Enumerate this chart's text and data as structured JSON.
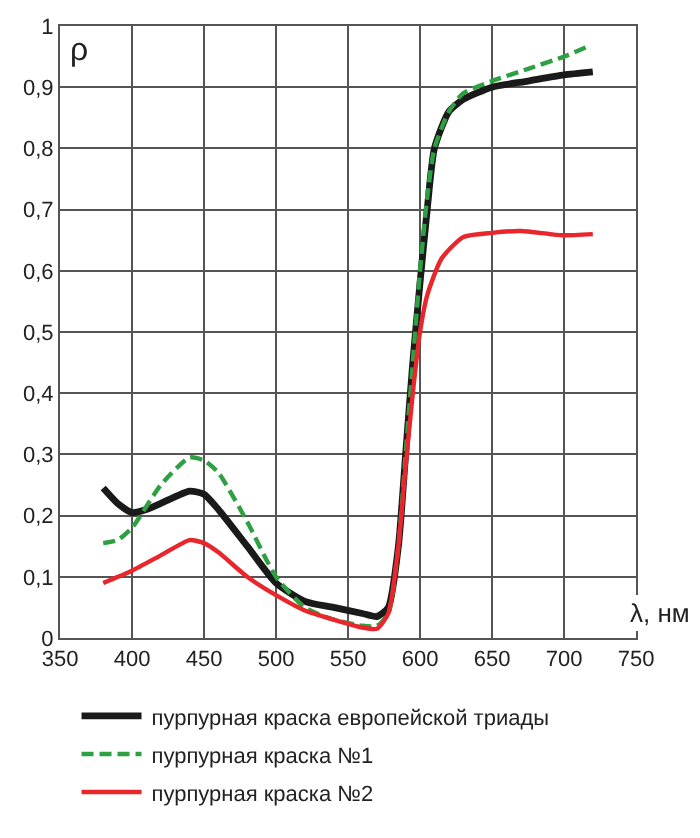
{
  "chart_data": {
    "type": "line",
    "ylabel": "ρ",
    "xlabel": "λ, нм",
    "xlim": [
      350,
      750
    ],
    "xticks": [
      350,
      400,
      450,
      500,
      550,
      600,
      650,
      700,
      750
    ],
    "ylim": [
      0,
      1
    ],
    "yticks": [
      {
        "value": 0,
        "label": "0"
      },
      {
        "value": 0.1,
        "label": "0,1"
      },
      {
        "value": 0.2,
        "label": "0,2"
      },
      {
        "value": 0.3,
        "label": "0,3"
      },
      {
        "value": 0.4,
        "label": "0,4"
      },
      {
        "value": 0.5,
        "label": "0,5"
      },
      {
        "value": 0.6,
        "label": "0,6"
      },
      {
        "value": 0.7,
        "label": "0,7"
      },
      {
        "value": 0.8,
        "label": "0,8"
      },
      {
        "value": 0.9,
        "label": "0,9"
      },
      {
        "value": 1,
        "label": "1"
      }
    ],
    "grid": true,
    "legend": "bottom",
    "marker": "none",
    "series": [
      {
        "name": "пурпурная краска европейской триады",
        "color": "#1a1a1a",
        "line_style": "solid",
        "x": [
          380,
          390,
          400,
          410,
          420,
          440,
          450,
          460,
          480,
          500,
          520,
          540,
          560,
          570,
          578,
          585,
          590,
          595,
          600,
          605,
          610,
          620,
          630,
          650,
          675,
          700,
          720
        ],
        "values": [
          0.245,
          0.22,
          0.205,
          0.21,
          0.22,
          0.24,
          0.235,
          0.21,
          0.15,
          0.09,
          0.06,
          0.05,
          0.04,
          0.035,
          0.05,
          0.15,
          0.3,
          0.45,
          0.58,
          0.7,
          0.8,
          0.86,
          0.88,
          0.9,
          0.91,
          0.92,
          0.925
        ]
      },
      {
        "name": "пурпурная краска №1",
        "color": "#2ea043",
        "line_style": "dashed",
        "x": [
          380,
          390,
          400,
          420,
          440,
          450,
          460,
          480,
          500,
          520,
          540,
          560,
          570,
          578,
          585,
          590,
          595,
          600,
          605,
          610,
          620,
          630,
          650,
          675,
          700,
          715
        ],
        "values": [
          0.155,
          0.16,
          0.18,
          0.25,
          0.295,
          0.29,
          0.27,
          0.19,
          0.1,
          0.05,
          0.03,
          0.02,
          0.02,
          0.04,
          0.15,
          0.3,
          0.45,
          0.6,
          0.72,
          0.8,
          0.86,
          0.89,
          0.91,
          0.93,
          0.95,
          0.965
        ]
      },
      {
        "name": "пурпурная краска №2",
        "color": "#e8262b",
        "line_style": "solid",
        "x": [
          380,
          400,
          420,
          440,
          450,
          460,
          480,
          500,
          520,
          540,
          560,
          570,
          578,
          585,
          590,
          595,
          600,
          605,
          615,
          630,
          650,
          670,
          690,
          700,
          720
        ],
        "values": [
          0.09,
          0.11,
          0.135,
          0.16,
          0.155,
          0.14,
          0.1,
          0.07,
          0.045,
          0.03,
          0.017,
          0.015,
          0.04,
          0.15,
          0.28,
          0.4,
          0.5,
          0.56,
          0.62,
          0.655,
          0.662,
          0.665,
          0.66,
          0.658,
          0.66
        ]
      }
    ]
  }
}
